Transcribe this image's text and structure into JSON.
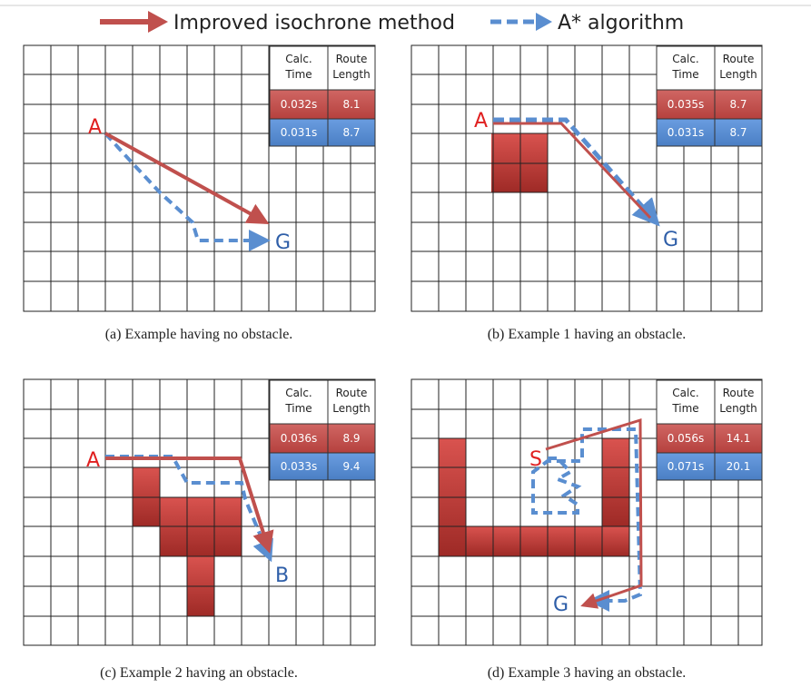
{
  "legend": {
    "improved_label": "Improved isochrone method",
    "astar_label": "A* algorithm",
    "improved_color": "#c0504d",
    "astar_color": "#5a8ed0"
  },
  "table_headers": {
    "calc_line1": "Calc.",
    "calc_line2": "Time",
    "route_line1": "Route",
    "route_line2": "Length"
  },
  "panels": [
    {
      "caption": "(a) Example having no obstacle.",
      "start_label": "A",
      "goal_label": "G",
      "improved": {
        "time": "0.032s",
        "length": "8.1"
      },
      "astar": {
        "time": "0.031s",
        "length": "8.7"
      }
    },
    {
      "caption": "(b) Example 1 having an obstacle.",
      "start_label": "A",
      "goal_label": "G",
      "improved": {
        "time": "0.035s",
        "length": "8.7"
      },
      "astar": {
        "time": "0.031s",
        "length": "8.7"
      }
    },
    {
      "caption": "(c) Example 2 having an obstacle.",
      "start_label": "A",
      "goal_label": "B",
      "improved": {
        "time": "0.036s",
        "length": "8.9"
      },
      "astar": {
        "time": "0.033s",
        "length": "9.4"
      }
    },
    {
      "caption": "(d) Example 3 having an obstacle.",
      "start_label": "S",
      "goal_label": "G",
      "improved": {
        "time": "0.056s",
        "length": "14.1"
      },
      "astar": {
        "time": "0.071s",
        "length": "20.1"
      }
    }
  ]
}
